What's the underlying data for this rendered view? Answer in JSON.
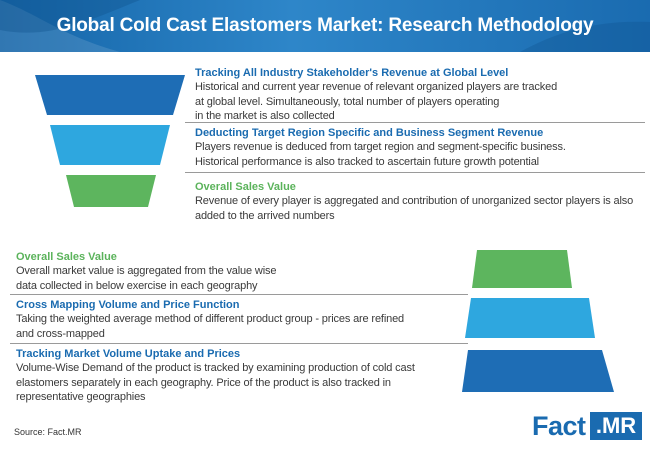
{
  "header": {
    "title": "Global Cold Cast Elastomers Market: Research Methodology",
    "colors": {
      "primary": "#1a6bb0",
      "light": "#2e86c9"
    }
  },
  "top_section": [
    {
      "heading": "Tracking All Industry Stakeholder's Revenue at Global Level",
      "heading_color": "#1a6bb0",
      "body": [
        "Historical and current year revenue of relevant organized players are tracked",
        "at global level. Simultaneously, total number of players operating",
        "in the market is also collected"
      ]
    },
    {
      "heading": "Deducting Target Region Specific and Business Segment Revenue",
      "heading_color": "#1a6bb0",
      "body": [
        "Players revenue is deduced from target region and segment-specific business.",
        "Historical performance is also tracked to ascertain future growth potential"
      ]
    },
    {
      "heading": "Overall Sales Value",
      "heading_color": "#5bb35b",
      "body": [
        "Revenue of every player is aggregated and contribution of unorganized sector players is also",
        "added to the arrived numbers"
      ]
    }
  ],
  "bottom_section": [
    {
      "heading": "Overall Sales Value",
      "heading_color": "#5bb35b",
      "body": [
        "Overall market value is aggregated from the value wise",
        "data collected in below exercise in each geography"
      ]
    },
    {
      "heading": "Cross Mapping Volume and Price Function",
      "heading_color": "#1a6bb0",
      "body": [
        "Taking the weighted average method of different product group - prices are refined",
        "and cross-mapped"
      ]
    },
    {
      "heading": "Tracking Market Volume Uptake and Prices",
      "heading_color": "#1a6bb0",
      "body": [
        "Volume-Wise Demand of the product is tracked by examining production of cold cast",
        "elastomers separately in each geography. Price of the product is also tracked in",
        "representative geographies"
      ]
    }
  ],
  "shape_colors": {
    "dark_blue": "#1e6db5",
    "light_blue": "#2ea7df",
    "green": "#5db55e"
  },
  "source": "Source: Fact.MR",
  "logo": {
    "part1": "Fact",
    "part2": ".MR"
  }
}
